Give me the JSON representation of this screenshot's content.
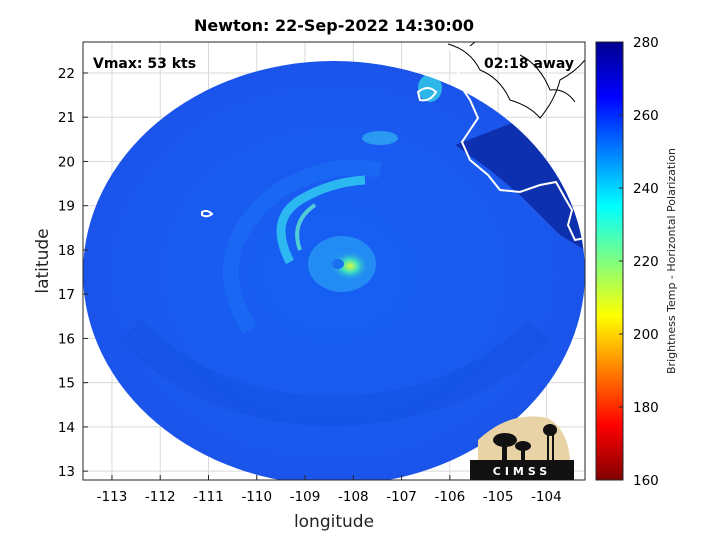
{
  "chart_data": {
    "type": "heatmap",
    "title": "Newton: 22-Sep-2022 14:30:00",
    "xlabel": "longitude",
    "ylabel": "latitude",
    "xlim": [
      -113.6,
      -103.2
    ],
    "ylim": [
      12.8,
      22.7
    ],
    "xticks": [
      -113,
      -112,
      -111,
      -110,
      -109,
      -108,
      -107,
      -106,
      -105,
      -104
    ],
    "yticks": [
      13,
      14,
      15,
      16,
      17,
      18,
      19,
      20,
      21,
      22
    ],
    "grid": true,
    "annotations": {
      "vmax": "Vmax: 53 kts",
      "time_away": "02:18 away"
    },
    "storm_center": {
      "lon": -108.1,
      "lat": 17.7
    },
    "colorbar": {
      "label": "Brightness Temp - Horizontal Polarization",
      "range": [
        160,
        280
      ],
      "ticks": [
        160,
        180,
        200,
        220,
        240,
        260,
        280
      ],
      "colormap": "jet"
    },
    "logo": {
      "text": "CIMSS"
    }
  }
}
